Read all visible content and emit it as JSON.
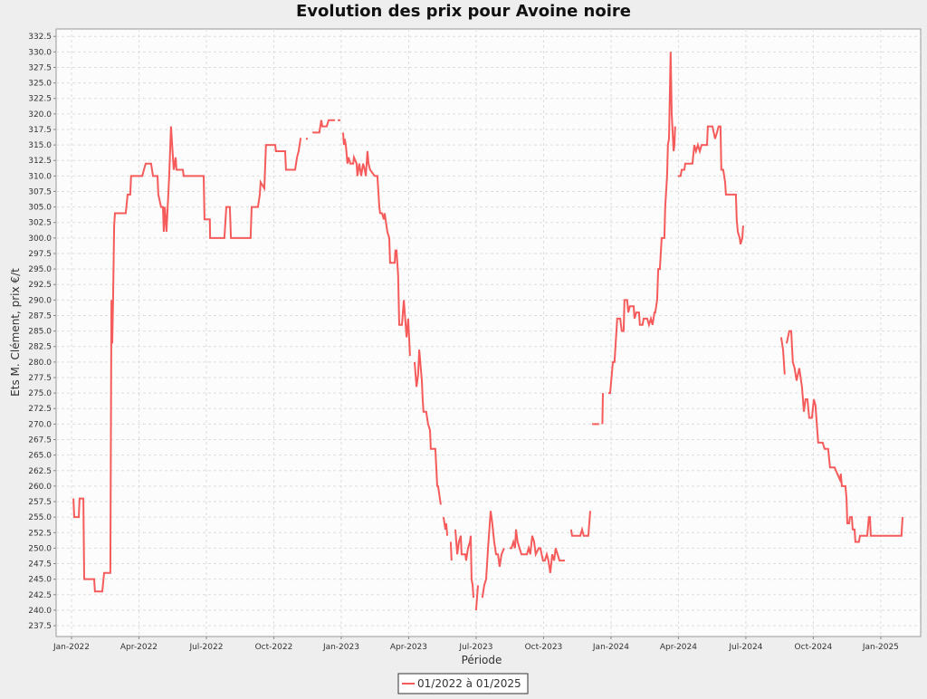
{
  "chart_data": {
    "type": "line",
    "title": "Evolution des prix pour Avoine noire",
    "x_label": "Période",
    "y_label": "Ets M. Clément, prix €/t",
    "grid": true,
    "legend": "bottom",
    "xlim": [
      2021.943,
      2025.148
    ],
    "ylim": [
      235.75,
      333.7
    ],
    "xticks": [
      {
        "value": 2022,
        "label": "Jan-2022"
      },
      {
        "value": 2022.25,
        "label": "Apr-2022"
      },
      {
        "value": 2022.5,
        "label": "Jul-2022"
      },
      {
        "value": 2022.75,
        "label": "Oct-2022"
      },
      {
        "value": 2023,
        "label": "Jan-2023"
      },
      {
        "value": 2023.25,
        "label": "Apr-2023"
      },
      {
        "value": 2023.5,
        "label": "Jul-2023"
      },
      {
        "value": 2023.75,
        "label": "Oct-2023"
      },
      {
        "value": 2024,
        "label": "Jan-2024"
      },
      {
        "value": 2024.25,
        "label": "Apr-2024"
      },
      {
        "value": 2024.5,
        "label": "Jul-2024"
      },
      {
        "value": 2024.75,
        "label": "Oct-2024"
      },
      {
        "value": 2025,
        "label": "Jan-2025"
      }
    ],
    "yticks": [
      237.5,
      {
        "value": 240,
        "label": "240.0"
      },
      242.5,
      {
        "value": 245,
        "label": "245.0"
      },
      247.5,
      {
        "value": 250,
        "label": "250.0"
      },
      252.5,
      {
        "value": 255,
        "label": "255.0"
      },
      257.5,
      {
        "value": 260,
        "label": "260.0"
      },
      262.5,
      {
        "value": 265,
        "label": "265.0"
      },
      267.5,
      {
        "value": 270,
        "label": "270.0"
      },
      272.5,
      {
        "value": 275,
        "label": "275.0"
      },
      277.5,
      {
        "value": 280,
        "label": "280.0"
      },
      282.5,
      {
        "value": 285,
        "label": "285.0"
      },
      287.5,
      {
        "value": 290,
        "label": "290.0"
      },
      292.5,
      {
        "value": 295,
        "label": "295.0"
      },
      297.5,
      {
        "value": 300,
        "label": "300.0"
      },
      302.5,
      {
        "value": 305,
        "label": "305.0"
      },
      307.5,
      {
        "value": 310,
        "label": "310.0"
      },
      312.5,
      {
        "value": 315,
        "label": "315.0"
      },
      317.5,
      {
        "value": 320,
        "label": "320.0"
      },
      322.5,
      {
        "value": 325,
        "label": "325.0"
      },
      327.5,
      {
        "value": 330,
        "label": "330.0"
      },
      332.5
    ],
    "x": [
      2022.007,
      2022.01,
      2022.027,
      2022.03,
      2022.044,
      2022.047,
      2022.084,
      2022.087,
      2022.114,
      2022.121,
      2022.144,
      2022.148,
      2022.151,
      2022.154,
      2022.158,
      2022.161,
      2022.201,
      2022.208,
      2022.218,
      2022.221,
      2022.262,
      2022.275,
      2022.295,
      2022.302,
      2022.319,
      2022.322,
      2022.332,
      2022.339,
      2022.342,
      2022.346,
      2022.352,
      2022.362,
      2022.369,
      2022.379,
      2022.386,
      2022.389,
      2022.413,
      2022.416,
      2022.49,
      2022.493,
      2022.513,
      2022.514,
      2022.567,
      2022.574,
      2022.587,
      2022.591,
      2022.664,
      2022.668,
      2022.691,
      2022.698,
      2022.701,
      2022.715,
      2022.721,
      2022.755,
      2022.758,
      2022.792,
      2022.795,
      2022.829,
      2022.836,
      2022.842,
      2022.849,
      2022.852,
      null,
      2022.869,
      2022.876,
      null,
      2022.893,
      2022.919,
      2022.926,
      2022.93,
      2022.946,
      2022.953,
      2022.977,
      null,
      2022.987,
      2022.997,
      null,
      2023.007,
      2023.01,
      2023.013,
      2023.017,
      2023.023,
      2023.027,
      2023.034,
      2023.044,
      2023.047,
      2023.057,
      2023.06,
      2023.067,
      2023.074,
      2023.081,
      2023.087,
      2023.091,
      2023.097,
      2023.101,
      2023.107,
      2023.124,
      2023.134,
      2023.141,
      2023.144,
      2023.151,
      2023.158,
      2023.161,
      2023.171,
      2023.178,
      2023.181,
      2023.198,
      2023.201,
      2023.205,
      2023.211,
      2023.215,
      2023.225,
      2023.232,
      2023.242,
      2023.248,
      2023.255,
      null,
      2023.272,
      2023.279,
      2023.285,
      2023.289,
      2023.299,
      2023.302,
      2023.305,
      2023.315,
      2023.322,
      2023.329,
      2023.332,
      2023.349,
      2023.356,
      2023.359,
      2023.369,
      null,
      2023.379,
      2023.386,
      2023.389,
      2023.393,
      null,
      2023.406,
      2023.409,
      null,
      2023.423,
      2023.43,
      2023.436,
      2023.443,
      2023.446,
      2023.46,
      2023.463,
      2023.47,
      2023.477,
      2023.48,
      2023.483,
      2023.487,
      2023.49,
      null,
      2023.5,
      2023.507,
      null,
      2023.523,
      2023.53,
      2023.537,
      2023.544,
      2023.554,
      2023.56,
      2023.567,
      2023.574,
      2023.581,
      2023.587,
      2023.594,
      2023.604,
      null,
      2023.624,
      2023.631,
      2023.638,
      2023.644,
      2023.648,
      2023.654,
      2023.661,
      2023.668,
      2023.688,
      2023.695,
      2023.701,
      2023.708,
      2023.715,
      2023.721,
      2023.732,
      2023.738,
      2023.748,
      2023.755,
      2023.762,
      2023.768,
      2023.775,
      2023.782,
      2023.789,
      2023.795,
      2023.802,
      2023.809,
      2023.829,
      null,
      2023.852,
      2023.856,
      2023.886,
      2023.893,
      2023.899,
      2023.916,
      2023.923,
      null,
      2023.93,
      2023.956,
      null,
      2023.968,
      2023.97,
      null,
      2023.99,
      2023.997,
      2024.007,
      2024.013,
      2024.023,
      2024.034,
      2024.04,
      2024.047,
      2024.05,
      2024.06,
      2024.064,
      2024.07,
      2024.084,
      2024.087,
      2024.094,
      2024.104,
      2024.107,
      2024.117,
      2024.121,
      2024.134,
      2024.141,
      2024.148,
      2024.154,
      2024.161,
      2024.164,
      2024.171,
      2024.175,
      2024.181,
      2024.188,
      2024.198,
      2024.201,
      2024.208,
      2024.211,
      2024.215,
      2024.221,
      2024.225,
      2024.232,
      2024.235,
      2024.238,
      null,
      2024.248,
      2024.258,
      2024.262,
      2024.272,
      2024.275,
      2024.302,
      2024.309,
      2024.315,
      2024.322,
      2024.329,
      2024.336,
      2024.356,
      2024.359,
      2024.376,
      2024.386,
      2024.393,
      2024.399,
      2024.406,
      2024.409,
      2024.416,
      2024.423,
      2024.426,
      2024.463,
      2024.466,
      2024.47,
      2024.477,
      2024.48,
      2024.487,
      2024.49,
      null,
      2024.631,
      2024.638,
      2024.644,
      null,
      2024.651,
      2024.661,
      2024.668,
      2024.674,
      2024.681,
      2024.688,
      2024.698,
      2024.708,
      2024.715,
      2024.721,
      2024.728,
      2024.735,
      2024.745,
      2024.752,
      2024.758,
      2024.768,
      2024.785,
      2024.792,
      2024.805,
      2024.812,
      2024.819,
      2024.829,
      2024.839,
      2024.849,
      2024.852,
      2024.856,
      2024.869,
      2024.873,
      2024.876,
      2024.883,
      2024.886,
      2024.893,
      2024.896,
      2024.903,
      2024.906,
      2024.919,
      2024.923,
      2024.95,
      2024.956,
      2024.96,
      2024.963,
      2025.077,
      2025.081
    ],
    "series": [
      {
        "name": "01/2022 à 01/2025",
        "color": "#f65b5b",
        "values": [
          258,
          255,
          255,
          258,
          258,
          245,
          245,
          243,
          243,
          246,
          246,
          290,
          283,
          290,
          302,
          304,
          304,
          307,
          307,
          310,
          310,
          312,
          312,
          310,
          310,
          307,
          305,
          305,
          301,
          305,
          301,
          310,
          318,
          311,
          313,
          311,
          311,
          310,
          310,
          303,
          303,
          300,
          300,
          305,
          305,
          300,
          300,
          305,
          305,
          307,
          309,
          308,
          315,
          315,
          314,
          314,
          311,
          311,
          313,
          314,
          316,
          316,
          null,
          316,
          316,
          null,
          317,
          317,
          319,
          318,
          318,
          319,
          319,
          null,
          319,
          319,
          null,
          317,
          315,
          316,
          315,
          312,
          313,
          312,
          312,
          313,
          312,
          310,
          312,
          310,
          312,
          311,
          310,
          314,
          312,
          311,
          310,
          310,
          305,
          304,
          304,
          303,
          304,
          301,
          300,
          296,
          296,
          298,
          298,
          294,
          286,
          286,
          290,
          284,
          287,
          281,
          null,
          280,
          276,
          278,
          282,
          277,
          274,
          272,
          272,
          270,
          269,
          266,
          266,
          260,
          260,
          257,
          null,
          255,
          253,
          254,
          252,
          null,
          251,
          248,
          null,
          253,
          249,
          251,
          252,
          249,
          249,
          248,
          250,
          251,
          252,
          245,
          244,
          242,
          null,
          240,
          244,
          null,
          242,
          244,
          245,
          250,
          256,
          254,
          251,
          249,
          249,
          247,
          249,
          250,
          null,
          250,
          250,
          251,
          250,
          253,
          251,
          250,
          249,
          249,
          250,
          249,
          252,
          251,
          249,
          250,
          250,
          248,
          248,
          249,
          248,
          246,
          249,
          248,
          250,
          249,
          248,
          248,
          null,
          253,
          252,
          252,
          253,
          252,
          252,
          256,
          null,
          270,
          270,
          null,
          270,
          275,
          null,
          275,
          275,
          280,
          280,
          287,
          287,
          285,
          285,
          290,
          290,
          288,
          289,
          289,
          287,
          288,
          288,
          286,
          286,
          287,
          287,
          286,
          287,
          286,
          288,
          288,
          290,
          295,
          295,
          300,
          300,
          305,
          310,
          315,
          316,
          330,
          320,
          314,
          315,
          318,
          null,
          310,
          310,
          311,
          311,
          312,
          312,
          315,
          314,
          315,
          314,
          315,
          315,
          318,
          318,
          316,
          317,
          318,
          318,
          311,
          311,
          309,
          307,
          307,
          303,
          301,
          300,
          299,
          300,
          302,
          null,
          284,
          282,
          278,
          null,
          283,
          285,
          285,
          280,
          279,
          277,
          279,
          276,
          272,
          274,
          274,
          271,
          271,
          274,
          273,
          267,
          267,
          266,
          266,
          263,
          263,
          263,
          262,
          261,
          262,
          260,
          260,
          258,
          254,
          254,
          255,
          255,
          253,
          253,
          251,
          251,
          252,
          252,
          255,
          255,
          252,
          252,
          255
        ]
      }
    ]
  }
}
